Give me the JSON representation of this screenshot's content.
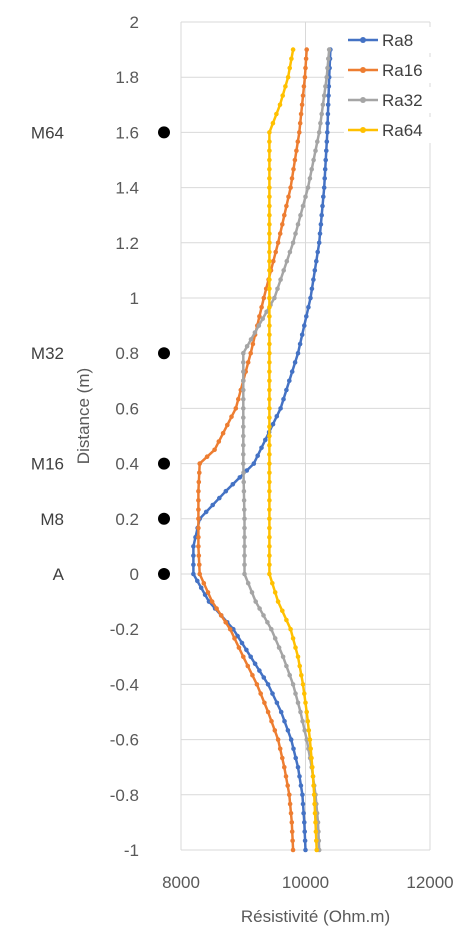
{
  "chart_data": {
    "type": "line",
    "title": "",
    "xlabel": "Résistivité (Ohm.m)",
    "ylabel": "Distance (m)",
    "xlim": [
      8000,
      12000
    ],
    "ylim": [
      -1,
      2
    ],
    "xticks": [
      8000,
      10000,
      12000
    ],
    "yticks": [
      -1,
      -0.8,
      -0.6,
      -0.4,
      -0.2,
      0,
      0.2,
      0.4,
      0.6,
      0.8,
      1,
      1.2,
      1.4,
      1.6,
      1.8,
      2
    ],
    "xtick_labels": [
      "8000",
      "10000",
      "12000"
    ],
    "ytick_labels": [
      "-1",
      "-0.8",
      "-0.6",
      "-0.4",
      "-0.2",
      "0",
      "0.2",
      "0.4",
      "0.6",
      "0.8",
      "1",
      "1.2",
      "1.4",
      "1.6",
      "1.8",
      "2"
    ],
    "grid": {
      "horizontal": true,
      "vertical": true
    },
    "legend_position": "top-right",
    "series": [
      {
        "name": "Ra8",
        "color": "#4472C4",
        "points": [
          [
            10400,
            1.9
          ],
          [
            10380,
            1.8
          ],
          [
            10350,
            1.6
          ],
          [
            10300,
            1.4
          ],
          [
            10220,
            1.2
          ],
          [
            10080,
            1.0
          ],
          [
            9880,
            0.8
          ],
          [
            9600,
            0.6
          ],
          [
            9170,
            0.4
          ],
          [
            8720,
            0.3
          ],
          [
            8300,
            0.2
          ],
          [
            8200,
            0.1
          ],
          [
            8200,
            0.0
          ],
          [
            8450,
            -0.1
          ],
          [
            8840,
            -0.2
          ],
          [
            9120,
            -0.3
          ],
          [
            9400,
            -0.4
          ],
          [
            9610,
            -0.5
          ],
          [
            9770,
            -0.6
          ],
          [
            9880,
            -0.7
          ],
          [
            9950,
            -0.8
          ],
          [
            9980,
            -0.9
          ],
          [
            10000,
            -1.0
          ]
        ]
      },
      {
        "name": "Ra16",
        "color": "#ED7D31",
        "points": [
          [
            10020,
            1.9
          ],
          [
            9990,
            1.8
          ],
          [
            9900,
            1.6
          ],
          [
            9760,
            1.4
          ],
          [
            9560,
            1.2
          ],
          [
            9330,
            1.0
          ],
          [
            9120,
            0.8
          ],
          [
            8880,
            0.6
          ],
          [
            8540,
            0.45
          ],
          [
            8300,
            0.4
          ],
          [
            8280,
            0.3
          ],
          [
            8280,
            0.2
          ],
          [
            8280,
            0.1
          ],
          [
            8300,
            0.0
          ],
          [
            8500,
            -0.1
          ],
          [
            8790,
            -0.2
          ],
          [
            9000,
            -0.3
          ],
          [
            9220,
            -0.4
          ],
          [
            9400,
            -0.5
          ],
          [
            9560,
            -0.6
          ],
          [
            9660,
            -0.7
          ],
          [
            9740,
            -0.8
          ],
          [
            9780,
            -0.9
          ],
          [
            9800,
            -1.0
          ]
        ]
      },
      {
        "name": "Ra32",
        "color": "#A5A5A5",
        "points": [
          [
            10380,
            1.9
          ],
          [
            10340,
            1.8
          ],
          [
            10220,
            1.6
          ],
          [
            10040,
            1.4
          ],
          [
            9800,
            1.2
          ],
          [
            9500,
            1.0
          ],
          [
            9250,
            0.9
          ],
          [
            9000,
            0.8
          ],
          [
            9000,
            0.6
          ],
          [
            9000,
            0.4
          ],
          [
            9020,
            0.2
          ],
          [
            9020,
            0.0
          ],
          [
            9200,
            -0.1
          ],
          [
            9450,
            -0.2
          ],
          [
            9640,
            -0.3
          ],
          [
            9800,
            -0.4
          ],
          [
            9920,
            -0.5
          ],
          [
            10020,
            -0.6
          ],
          [
            10100,
            -0.7
          ],
          [
            10160,
            -0.8
          ],
          [
            10200,
            -0.9
          ],
          [
            10220,
            -1.0
          ]
        ]
      },
      {
        "name": "Ra64",
        "color": "#FFC000",
        "points": [
          [
            9800,
            1.9
          ],
          [
            9720,
            1.8
          ],
          [
            9590,
            1.7
          ],
          [
            9420,
            1.6
          ],
          [
            9420,
            1.4
          ],
          [
            9420,
            1.0
          ],
          [
            9420,
            0.6
          ],
          [
            9420,
            0.2
          ],
          [
            9420,
            0.0
          ],
          [
            9560,
            -0.1
          ],
          [
            9760,
            -0.2
          ],
          [
            9880,
            -0.3
          ],
          [
            9960,
            -0.4
          ],
          [
            10020,
            -0.5
          ],
          [
            10070,
            -0.6
          ],
          [
            10110,
            -0.7
          ],
          [
            10140,
            -0.8
          ],
          [
            10160,
            -0.9
          ],
          [
            10180,
            -1.0
          ]
        ]
      }
    ],
    "markers": [
      {
        "label": "M64",
        "y": 1.6
      },
      {
        "label": "M32",
        "y": 0.8
      },
      {
        "label": "M16",
        "y": 0.4
      },
      {
        "label": "M8",
        "y": 0.2
      },
      {
        "label": "A",
        "y": 0.0
      }
    ]
  }
}
